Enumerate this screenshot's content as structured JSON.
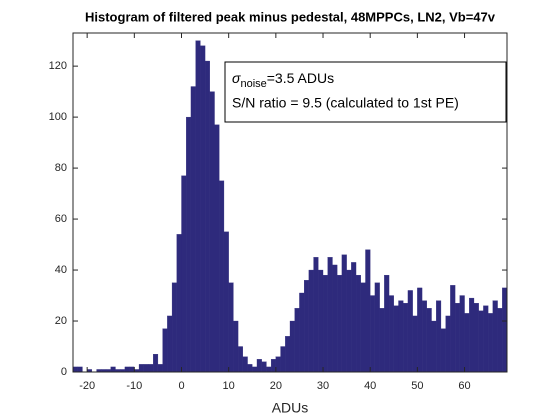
{
  "chart_data": {
    "type": "histogram",
    "title": "Histogram of filtered peak minus pedestal, 48MPPCs, LN2, Vb=47v",
    "xlabel": "ADUs",
    "annotation": {
      "symbol": "σ",
      "subscript": "noise",
      "text": "=3.5 ADUs"
    },
    "annotation2": "S/N ratio = 9.5 (calculated to 1st PE)",
    "color": "#2e2a7c",
    "bins": [
      -23,
      -22,
      -21,
      -20,
      -19,
      -18,
      -17,
      -16,
      -15,
      -14,
      -13,
      -12,
      -11,
      -10,
      -9,
      -8,
      -7,
      -6,
      -5,
      -4,
      -3,
      -2,
      -1,
      0,
      1,
      2,
      3,
      4,
      5,
      6,
      7,
      8,
      9,
      10,
      11,
      12,
      13,
      14,
      15,
      16,
      17,
      18,
      19,
      20,
      21,
      22,
      23,
      24,
      25,
      26,
      27,
      28,
      29,
      30,
      31,
      32,
      33,
      34,
      35,
      36,
      37,
      38,
      39,
      40,
      41,
      42,
      43,
      44,
      45,
      46,
      47,
      48,
      49,
      50,
      51,
      52,
      53,
      54,
      55,
      56,
      57,
      58,
      59,
      60,
      61,
      62,
      63,
      64,
      65,
      66,
      67,
      68,
      69
    ],
    "counts": [
      2,
      2,
      0,
      1,
      0,
      1,
      1,
      1,
      2,
      1,
      1,
      2,
      2,
      1,
      3,
      3,
      3,
      7,
      3,
      17,
      22,
      35,
      54,
      77,
      100,
      112,
      130,
      128,
      122,
      110,
      97,
      75,
      55,
      35,
      20,
      10,
      6,
      3,
      2,
      5,
      4,
      2,
      5,
      6,
      10,
      14,
      20,
      25,
      31,
      36,
      40,
      45,
      40,
      38,
      45,
      42,
      38,
      46,
      40,
      43,
      38,
      35,
      48,
      30,
      35,
      25,
      38,
      30,
      26,
      28,
      27,
      32,
      22,
      33,
      28,
      25,
      20,
      28,
      17,
      22,
      34,
      27,
      30,
      23,
      29,
      27,
      24,
      26,
      23,
      28,
      25,
      33
    ],
    "xlim": [
      -23,
      69
    ],
    "ylim": [
      0,
      133
    ],
    "xticks": [
      -20,
      -10,
      0,
      10,
      20,
      30,
      40,
      50,
      60
    ],
    "yticks": [
      0,
      20,
      40,
      60,
      80,
      100,
      120
    ]
  }
}
